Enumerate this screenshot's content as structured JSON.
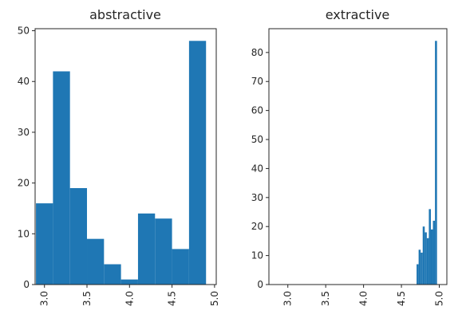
{
  "chart_data": [
    {
      "type": "bar",
      "title": "abstractive",
      "xlabel": "",
      "ylabel": "",
      "xlim": [
        2.89,
        5.02
      ],
      "ylim": [
        0,
        50.4
      ],
      "x_ticks": [
        "3.0",
        "3.5",
        "4.0",
        "4.5",
        "5.0"
      ],
      "y_ticks": [
        "0",
        "10",
        "20",
        "30",
        "40",
        "50"
      ],
      "color": "#1f77b4",
      "bins": [
        {
          "x0": 2.9,
          "x1": 3.1,
          "value": 16
        },
        {
          "x0": 3.1,
          "x1": 3.3,
          "value": 42
        },
        {
          "x0": 3.3,
          "x1": 3.5,
          "value": 19
        },
        {
          "x0": 3.5,
          "x1": 3.7,
          "value": 9
        },
        {
          "x0": 3.7,
          "x1": 3.9,
          "value": 4
        },
        {
          "x0": 3.9,
          "x1": 4.1,
          "value": 1
        },
        {
          "x0": 4.1,
          "x1": 4.3,
          "value": 14
        },
        {
          "x0": 4.3,
          "x1": 4.5,
          "value": 13
        },
        {
          "x0": 4.5,
          "x1": 4.7,
          "value": 7
        },
        {
          "x0": 4.7,
          "x1": 4.9,
          "value": 48
        }
      ]
    },
    {
      "type": "bar",
      "title": "extractive",
      "xlabel": "",
      "ylabel": "",
      "xlim": [
        2.75,
        5.1
      ],
      "ylim": [
        0,
        88.2
      ],
      "x_ticks": [
        "3.0",
        "3.5",
        "4.0",
        "4.5",
        "5.0"
      ],
      "y_ticks": [
        "0",
        "10",
        "20",
        "30",
        "40",
        "50",
        "60",
        "70",
        "80"
      ],
      "color": "#1f77b4",
      "bins": [
        {
          "x0": 4.7,
          "x1": 4.727,
          "value": 7
        },
        {
          "x0": 4.727,
          "x1": 4.754,
          "value": 12
        },
        {
          "x0": 4.754,
          "x1": 4.781,
          "value": 11
        },
        {
          "x0": 4.781,
          "x1": 4.808,
          "value": 20
        },
        {
          "x0": 4.808,
          "x1": 4.835,
          "value": 18
        },
        {
          "x0": 4.835,
          "x1": 4.862,
          "value": 16
        },
        {
          "x0": 4.862,
          "x1": 4.889,
          "value": 26
        },
        {
          "x0": 4.889,
          "x1": 4.916,
          "value": 19
        },
        {
          "x0": 4.916,
          "x1": 4.943,
          "value": 22
        },
        {
          "x0": 4.943,
          "x1": 4.97,
          "value": 84
        }
      ]
    }
  ]
}
